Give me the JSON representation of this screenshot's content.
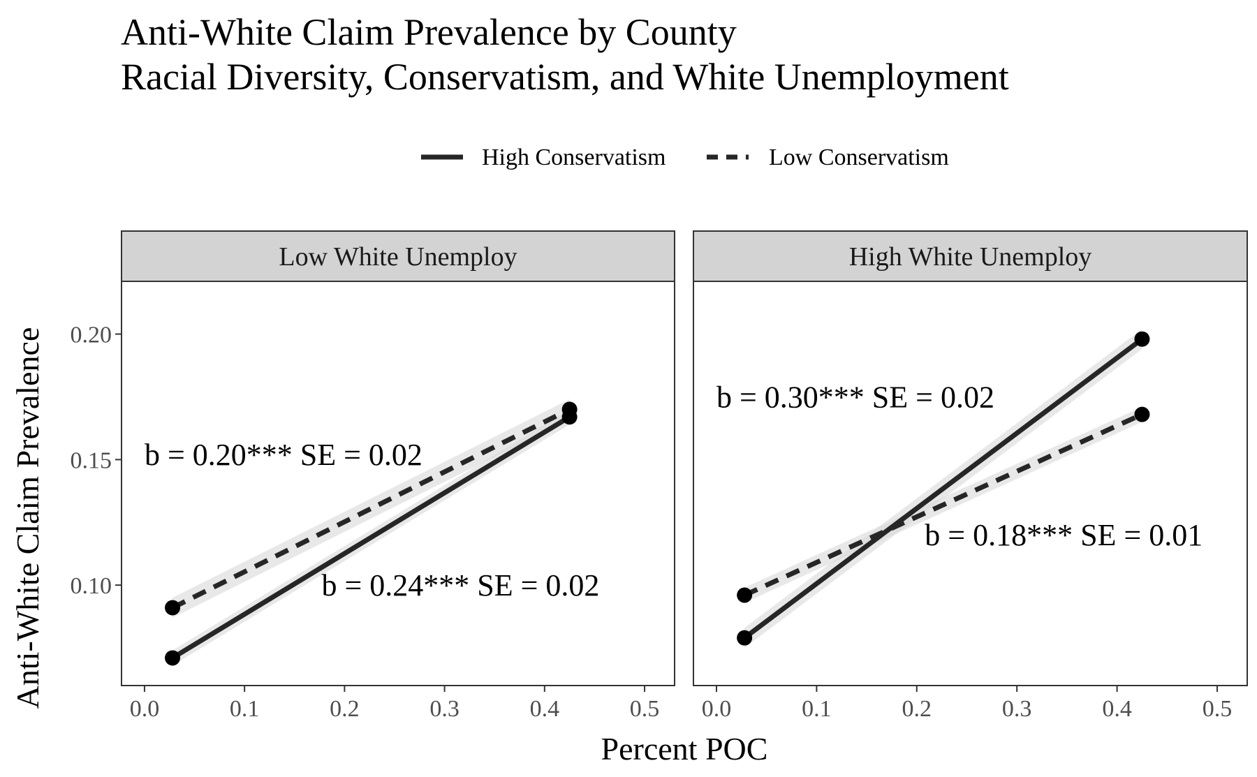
{
  "chart_data": {
    "type": "line",
    "title": "Anti-White Claim Prevalence by County",
    "subtitle": "Racial Diversity, Conservatism, and White Unemployment",
    "xlabel": "Percent POC",
    "ylabel": "Anti-White Claim Prevalence",
    "xlim": [
      -0.023,
      0.53
    ],
    "ylim": [
      0.06,
      0.221
    ],
    "x_ticks": [
      "0.0",
      "0.1",
      "0.2",
      "0.3",
      "0.4",
      "0.5"
    ],
    "x_tick_values": [
      0.0,
      0.1,
      0.2,
      0.3,
      0.4,
      0.5
    ],
    "y_ticks": [
      "0.10",
      "0.15",
      "0.20"
    ],
    "y_tick_values": [
      0.1,
      0.15,
      0.2
    ],
    "grid": false,
    "legend": {
      "position": "top",
      "entries": [
        {
          "label": "High Conservatism",
          "linetype": "solid"
        },
        {
          "label": "Low Conservatism",
          "linetype": "dashed"
        }
      ]
    },
    "colors": {
      "line": "#262626",
      "ribbon": "#d9d9d9",
      "strip": "#d3d3d3",
      "border": "#333333"
    },
    "panels": [
      {
        "label": "Low White Unemploy",
        "series": [
          {
            "name": "High Conservatism",
            "linetype": "solid",
            "x": [
              0.028,
              0.425
            ],
            "y": [
              0.071,
              0.167
            ],
            "se": 0.003
          },
          {
            "name": "Low Conservatism",
            "linetype": "dashed",
            "x": [
              0.028,
              0.425
            ],
            "y": [
              0.091,
              0.17
            ],
            "se": 0.004
          }
        ],
        "annotations": [
          {
            "text": "b = 0.20*** SE = 0.02",
            "x": 0.0,
            "y": 0.152
          },
          {
            "text": "b = 0.24*** SE = 0.02",
            "x": 0.177,
            "y": 0.1
          }
        ]
      },
      {
        "label": "High White Unemploy",
        "series": [
          {
            "name": "High Conservatism",
            "linetype": "solid",
            "x": [
              0.028,
              0.425
            ],
            "y": [
              0.079,
              0.198
            ],
            "se": 0.004
          },
          {
            "name": "Low Conservatism",
            "linetype": "dashed",
            "x": [
              0.028,
              0.425
            ],
            "y": [
              0.096,
              0.168
            ],
            "se": 0.003
          }
        ],
        "annotations": [
          {
            "text": "b = 0.30*** SE = 0.02",
            "x": 0.0,
            "y": 0.175
          },
          {
            "text": "b = 0.18*** SE = 0.01",
            "x": 0.208,
            "y": 0.12
          }
        ]
      }
    ]
  }
}
